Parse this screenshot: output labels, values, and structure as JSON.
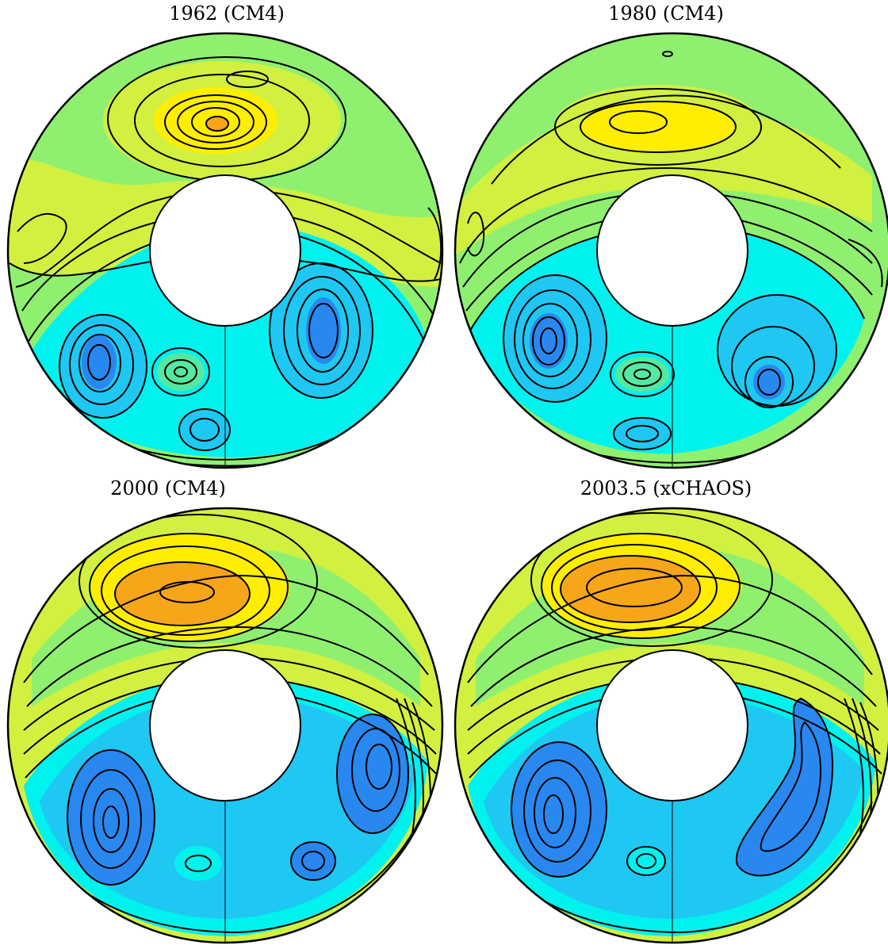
{
  "figure": {
    "panels": [
      {
        "title": "1962 (CM4)"
      },
      {
        "title": "1980 (CM4)"
      },
      {
        "title": "2000 (CM4)"
      },
      {
        "title": "2003.5 (xCHAOS)"
      }
    ]
  },
  "colors": {
    "orange": "#f7a61a",
    "yellow": "#ffee00",
    "yellow_green": "#d2f040",
    "light_green": "#8ff070",
    "sea_green": "#55e8a0",
    "cyan": "#00f2ee",
    "sky_blue": "#1ec8f2",
    "blue": "#2888f0",
    "contour_line": "#000000",
    "inner_core": "#ffffff"
  }
}
